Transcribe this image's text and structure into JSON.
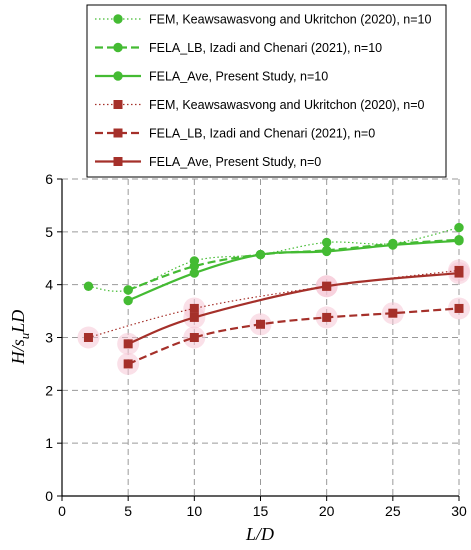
{
  "chart_data": {
    "type": "line",
    "xlabel_parts": [
      "L/D"
    ],
    "ylabel_parts": [
      "H/s",
      "u",
      "LD"
    ],
    "xlim": [
      0,
      30
    ],
    "ylim": [
      0,
      6
    ],
    "xticks": [
      0,
      5,
      10,
      15,
      20,
      25,
      30
    ],
    "yticks": [
      0,
      1,
      2,
      3,
      4,
      5,
      6
    ],
    "grid": true,
    "legend_position": "top",
    "series": [
      {
        "name": "FEM, Keawsawasvong and Ukritchon (2020), n=10",
        "color": "#44bb33",
        "marker": "circle",
        "line": "dotted",
        "x": [
          2,
          5,
          10,
          15,
          20,
          25,
          30
        ],
        "y": [
          3.97,
          3.9,
          4.45,
          4.57,
          4.8,
          4.78,
          5.08
        ]
      },
      {
        "name": "FELA_LB, Izadi and Chenari (2021), n=10",
        "color": "#44bb33",
        "marker": "circle",
        "line": "dashed",
        "x": [
          5,
          10,
          15,
          20,
          25,
          30
        ],
        "y": [
          3.9,
          4.35,
          4.57,
          4.65,
          4.77,
          4.85
        ]
      },
      {
        "name": "FELA_Ave, Present Study, n=10",
        "color": "#44bb33",
        "marker": "circle",
        "line": "solid",
        "x": [
          5,
          10,
          15,
          20,
          25,
          30
        ],
        "y": [
          3.7,
          4.22,
          4.57,
          4.63,
          4.75,
          4.83
        ]
      },
      {
        "name": "FEM, Keawsawasvong and Ukritchon (2020), n=0",
        "color": "#a5302a",
        "marker": "square",
        "line": "dotted",
        "x": [
          2,
          10,
          20,
          30
        ],
        "y": [
          3.0,
          3.55,
          3.97,
          4.27
        ]
      },
      {
        "name": "FELA_LB, Izadi and Chenari (2021), n=0",
        "color": "#a5302a",
        "marker": "square",
        "line": "dashed",
        "x": [
          5,
          10,
          15,
          20,
          25,
          30
        ],
        "y": [
          2.5,
          3.0,
          3.25,
          3.38,
          3.46,
          3.55
        ]
      },
      {
        "name": "FELA_Ave, Present Study, n=0",
        "color": "#a5302a",
        "marker": "square",
        "line": "solid",
        "x": [
          5,
          10,
          20,
          30
        ],
        "y": [
          2.88,
          3.38,
          3.97,
          4.22
        ]
      }
    ]
  }
}
